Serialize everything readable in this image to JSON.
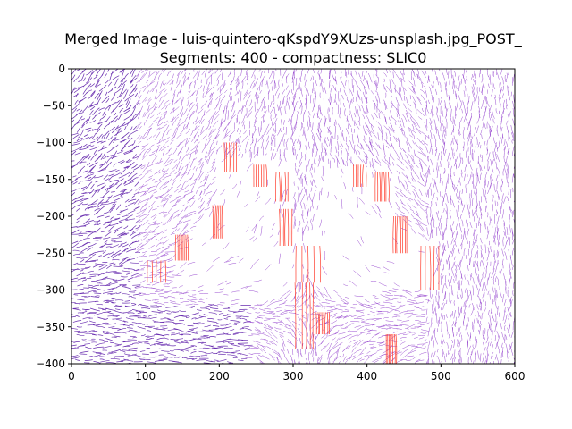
{
  "figure": {
    "title_line1": "Merged Image - luis-quintero-qKspdY9XUzs-unsplash.jpg_POST_",
    "title_line2": "Segments: 400 - compactness: SLIC0"
  },
  "chart_data": {
    "type": "line",
    "title": "Merged Image - luis-quintero-qKspdY9XUzs-unsplash.jpg_POST_ / Segments: 400 - compactness: SLIC0",
    "xlabel": "",
    "ylabel": "",
    "xlim": [
      0,
      600
    ],
    "ylim": [
      -400,
      0
    ],
    "x_ticks": [
      0,
      100,
      200,
      300,
      400,
      500,
      600
    ],
    "y_ticks": [
      0,
      -50,
      -100,
      -150,
      -200,
      -250,
      -300,
      -350,
      -400
    ],
    "grid": false,
    "legend": "none",
    "colors": {
      "background_lines": "#9b4fd1",
      "dense_lines": "#6a2fb0",
      "highlight_lines": "#ff3a2a"
    },
    "highlight_regions": [
      {
        "x": [
          205,
          225
        ],
        "y": [
          -100,
          -140
        ]
      },
      {
        "x": [
          275,
          295
        ],
        "y": [
          -140,
          -180
        ]
      },
      {
        "x": [
          190,
          205
        ],
        "y": [
          -185,
          -230
        ]
      },
      {
        "x": [
          140,
          160
        ],
        "y": [
          -225,
          -260
        ]
      },
      {
        "x": [
          100,
          130
        ],
        "y": [
          -260,
          -290
        ]
      },
      {
        "x": [
          280,
          300
        ],
        "y": [
          -190,
          -240
        ]
      },
      {
        "x": [
          300,
          340
        ],
        "y": [
          -240,
          -290
        ]
      },
      {
        "x": [
          300,
          330
        ],
        "y": [
          -290,
          -380
        ]
      },
      {
        "x": [
          330,
          350
        ],
        "y": [
          -330,
          -360
        ]
      },
      {
        "x": [
          380,
          400
        ],
        "y": [
          -130,
          -160
        ]
      },
      {
        "x": [
          410,
          430
        ],
        "y": [
          -140,
          -180
        ]
      },
      {
        "x": [
          435,
          455
        ],
        "y": [
          -200,
          -250
        ]
      },
      {
        "x": [
          470,
          500
        ],
        "y": [
          -240,
          -300
        ]
      },
      {
        "x": [
          425,
          440
        ],
        "y": [
          -360,
          -400
        ]
      },
      {
        "x": [
          245,
          265
        ],
        "y": [
          -130,
          -160
        ]
      }
    ]
  }
}
